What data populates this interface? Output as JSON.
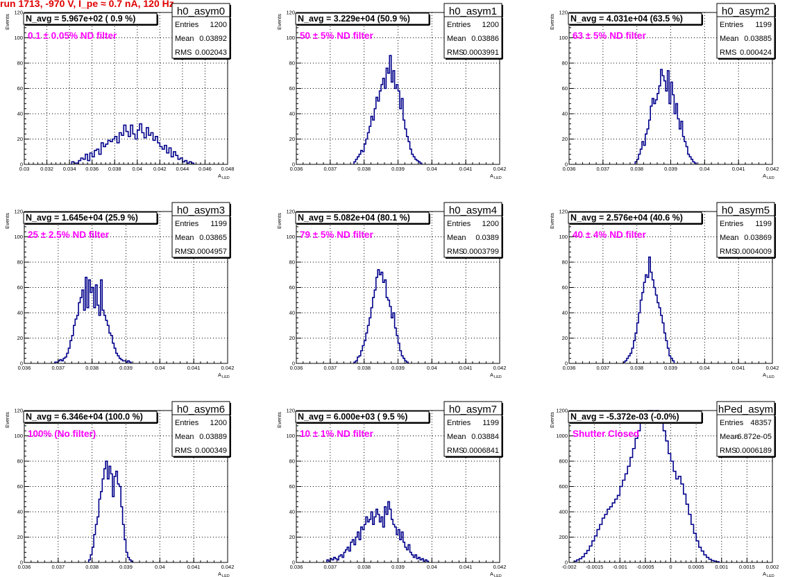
{
  "header": {
    "run_title": "run 1713,  -970 V, I_pe ≈ 0.7 nA, 120 Hz"
  },
  "style": {
    "hist_color": "#00008b",
    "annotation_color": "#ff00ff",
    "title_color": "#e00000",
    "frame_color": "#000000"
  },
  "chart_data": [
    {
      "type": "histogram",
      "name": "h0_asym0",
      "avg_text": "N_avg = 5.967e+02 ( 0.9 %)",
      "annotation": "0.1 ± 0.05% ND filter",
      "stats": [
        [
          "Entries",
          "1200"
        ],
        [
          "Mean",
          "0.03892"
        ],
        [
          "RMS",
          "0.002043"
        ]
      ],
      "xlabel": "A_LED",
      "ylabel": "Events",
      "xlim": [
        0.03,
        0.048
      ],
      "ylim": [
        0,
        120
      ],
      "grid": true,
      "xticks": [
        0.03,
        0.032,
        0.034,
        0.036,
        0.038,
        0.04,
        0.042,
        0.044,
        0.046,
        0.048
      ],
      "xtick_labels": [
        "0.03",
        "0.032",
        "0.034",
        "0.036",
        "0.038",
        "0.04",
        "0.042",
        "0.044",
        "0.046",
        "0.048"
      ],
      "yticks": [
        0,
        20,
        40,
        60,
        80,
        100,
        120
      ],
      "bin_start": 0.0342,
      "bin_width": 0.0002,
      "counts": [
        2,
        1,
        1,
        3,
        5,
        4,
        8,
        3,
        9,
        6,
        11,
        12,
        8,
        17,
        14,
        16,
        19,
        18,
        20,
        22,
        17,
        25,
        23,
        31,
        26,
        22,
        31,
        24,
        20,
        27,
        32,
        25,
        21,
        29,
        23,
        25,
        19,
        22,
        17,
        14,
        12,
        15,
        9,
        13,
        6,
        10,
        7,
        4,
        5,
        2,
        3,
        1,
        2,
        1
      ]
    },
    {
      "type": "histogram",
      "name": "h0_asym1",
      "avg_text": "N_avg = 3.229e+04 (50.9 %)",
      "annotation": "50 ± 5% ND filter",
      "stats": [
        [
          "Entries",
          "1200"
        ],
        [
          "Mean",
          "0.03886"
        ],
        [
          "RMS",
          "0.0003991"
        ]
      ],
      "xlabel": "A_LED",
      "ylabel": "Events",
      "xlim": [
        0.036,
        0.042
      ],
      "ylim": [
        0,
        120
      ],
      "grid": true,
      "xticks": [
        0.036,
        0.037,
        0.038,
        0.039,
        0.04,
        0.041,
        0.042
      ],
      "xtick_labels": [
        "0.036",
        "0.037",
        "0.038",
        "0.039",
        "0.04",
        "0.041",
        "0.042"
      ],
      "yticks": [
        0,
        20,
        40,
        60,
        80,
        100,
        120
      ],
      "bin_start": 0.0377,
      "bin_width": 5e-05,
      "counts": [
        2,
        4,
        6,
        8,
        11,
        10,
        16,
        20,
        25,
        30,
        38,
        35,
        44,
        53,
        50,
        58,
        63,
        68,
        60,
        76,
        72,
        86,
        65,
        74,
        60,
        63,
        58,
        44,
        52,
        35,
        28,
        22,
        18,
        12,
        8,
        6,
        4,
        3,
        2,
        1
      ]
    },
    {
      "type": "histogram",
      "name": "h0_asym2",
      "avg_text": "N_avg = 4.031e+04 (63.5 %)",
      "annotation": "63 ± 5% ND filter",
      "stats": [
        [
          "Entries",
          "1199"
        ],
        [
          "Mean",
          "0.03885"
        ],
        [
          "RMS",
          "0.000424"
        ]
      ],
      "xlabel": "A_LED",
      "ylabel": "Events",
      "xlim": [
        0.036,
        0.042
      ],
      "ylim": [
        0,
        120
      ],
      "grid": true,
      "xticks": [
        0.036,
        0.037,
        0.038,
        0.039,
        0.04,
        0.041,
        0.042
      ],
      "xtick_labels": [
        "0.036",
        "0.037",
        "0.038",
        "0.039",
        "0.04",
        "0.041",
        "0.042"
      ],
      "yticks": [
        0,
        20,
        40,
        60,
        80,
        100,
        120
      ],
      "bin_start": 0.03795,
      "bin_width": 5e-05,
      "counts": [
        2,
        4,
        8,
        12,
        18,
        15,
        24,
        28,
        35,
        46,
        52,
        48,
        51,
        56,
        62,
        75,
        70,
        66,
        58,
        74,
        48,
        65,
        55,
        40,
        48,
        36,
        28,
        34,
        22,
        18,
        14,
        8,
        6,
        4,
        2,
        1
      ]
    },
    {
      "type": "histogram",
      "name": "h0_asym3",
      "avg_text": "N_avg = 1.645e+04 (25.9 %)",
      "annotation": "25 ± 2.5% ND filter",
      "stats": [
        [
          "Entries",
          "1199"
        ],
        [
          "Mean",
          "0.03865"
        ],
        [
          "RMS",
          "0.0004957"
        ]
      ],
      "xlabel": "A_LED",
      "ylabel": "Events",
      "xlim": [
        0.036,
        0.042
      ],
      "ylim": [
        0,
        120
      ],
      "grid": true,
      "xticks": [
        0.036,
        0.037,
        0.038,
        0.039,
        0.04,
        0.041,
        0.042
      ],
      "xtick_labels": [
        "0.036",
        "0.037",
        "0.038",
        "0.039",
        "0.04",
        "0.041",
        "0.042"
      ],
      "yticks": [
        0,
        20,
        40,
        60,
        80,
        100,
        120
      ],
      "bin_start": 0.0369,
      "bin_width": 5e-05,
      "counts": [
        1,
        1,
        2,
        3,
        2,
        4,
        5,
        8,
        12,
        18,
        22,
        30,
        35,
        38,
        48,
        52,
        58,
        42,
        68,
        44,
        66,
        56,
        60,
        44,
        62,
        46,
        38,
        66,
        42,
        38,
        34,
        30,
        24,
        22,
        16,
        12,
        8,
        6,
        4,
        3,
        2,
        2,
        1,
        2,
        1
      ]
    },
    {
      "type": "histogram",
      "name": "h0_asym4",
      "avg_text": "N_avg = 5.082e+04 (80.1 %)",
      "annotation": "79 ± 5% ND filter",
      "stats": [
        [
          "Entries",
          "1200"
        ],
        [
          "Mean",
          "0.0389"
        ],
        [
          "RMS",
          "0.0003799"
        ]
      ],
      "xlabel": "A_LED",
      "ylabel": "Events",
      "xlim": [
        0.036,
        0.042
      ],
      "ylim": [
        0,
        120
      ],
      "grid": true,
      "xticks": [
        0.036,
        0.037,
        0.038,
        0.039,
        0.04,
        0.041,
        0.042
      ],
      "xtick_labels": [
        "0.036",
        "0.037",
        "0.038",
        "0.039",
        "0.04",
        "0.041",
        "0.042"
      ],
      "yticks": [
        0,
        20,
        40,
        60,
        80,
        100,
        120
      ],
      "bin_start": 0.0377,
      "bin_width": 5e-05,
      "counts": [
        1,
        2,
        5,
        6,
        10,
        14,
        18,
        24,
        30,
        36,
        44,
        52,
        58,
        68,
        74,
        70,
        72,
        64,
        66,
        52,
        50,
        45,
        36,
        40,
        28,
        22,
        16,
        10,
        6,
        4,
        2,
        1
      ]
    },
    {
      "type": "histogram",
      "name": "h0_asym5",
      "avg_text": "N_avg = 2.576e+04 (40.6 %)",
      "annotation": "40 ± 4% ND filter",
      "stats": [
        [
          "Entries",
          "1199"
        ],
        [
          "Mean",
          "0.03869"
        ],
        [
          "RMS",
          "0.0004009"
        ]
      ],
      "xlabel": "A_LED",
      "ylabel": "Events",
      "xlim": [
        0.036,
        0.042
      ],
      "ylim": [
        0,
        120
      ],
      "grid": true,
      "xticks": [
        0.036,
        0.037,
        0.038,
        0.039,
        0.04,
        0.041,
        0.042
      ],
      "xtick_labels": [
        "0.036",
        "0.037",
        "0.038",
        "0.039",
        "0.04",
        "0.041",
        "0.042"
      ],
      "yticks": [
        0,
        20,
        40,
        60,
        80,
        100,
        120
      ],
      "bin_start": 0.0376,
      "bin_width": 5e-05,
      "counts": [
        1,
        2,
        4,
        6,
        8,
        12,
        18,
        24,
        32,
        40,
        50,
        56,
        64,
        70,
        68,
        84,
        72,
        66,
        60,
        54,
        48,
        44,
        38,
        32,
        24,
        18,
        12,
        6,
        4,
        2
      ]
    },
    {
      "type": "histogram",
      "name": "h0_asym6",
      "avg_text": "N_avg = 6.346e+04 (100.0 %)",
      "annotation": "100% (No filter)",
      "stats": [
        [
          "Entries",
          "1200"
        ],
        [
          "Mean",
          "0.03889"
        ],
        [
          "RMS",
          "0.000349"
        ]
      ],
      "xlabel": "A_LED",
      "ylabel": "Events",
      "xlim": [
        0.036,
        0.042
      ],
      "ylim": [
        0,
        120
      ],
      "grid": true,
      "xticks": [
        0.036,
        0.037,
        0.038,
        0.039,
        0.04,
        0.041,
        0.042
      ],
      "xtick_labels": [
        "0.036",
        "0.037",
        "0.038",
        "0.039",
        "0.04",
        "0.041",
        "0.042"
      ],
      "yticks": [
        0,
        20,
        40,
        60,
        80,
        100,
        120
      ],
      "bin_start": 0.0379,
      "bin_width": 5e-05,
      "counts": [
        2,
        6,
        12,
        22,
        30,
        36,
        50,
        56,
        66,
        74,
        80,
        66,
        76,
        70,
        52,
        68,
        72,
        62,
        60,
        44,
        30,
        18,
        8,
        4,
        2,
        1
      ]
    },
    {
      "type": "histogram",
      "name": "h0_asym7",
      "avg_text": "N_avg = 6.000e+03 ( 9.5 %)",
      "annotation": "10 ± 1% ND filter",
      "stats": [
        [
          "Entries",
          "1199"
        ],
        [
          "Mean",
          "0.03884"
        ],
        [
          "RMS",
          "0.0006841"
        ]
      ],
      "xlabel": "A_LED",
      "ylabel": "Events",
      "xlim": [
        0.036,
        0.042
      ],
      "ylim": [
        0,
        120
      ],
      "grid": true,
      "xticks": [
        0.036,
        0.037,
        0.038,
        0.039,
        0.04,
        0.041,
        0.042
      ],
      "xtick_labels": [
        "0.036",
        "0.037",
        "0.038",
        "0.039",
        "0.04",
        "0.041",
        "0.042"
      ],
      "yticks": [
        0,
        20,
        40,
        60,
        80,
        100,
        120
      ],
      "bin_start": 0.0369,
      "bin_width": 5e-05,
      "counts": [
        2,
        1,
        3,
        2,
        4,
        3,
        2,
        5,
        6,
        4,
        8,
        10,
        12,
        9,
        16,
        18,
        14,
        20,
        24,
        18,
        28,
        26,
        30,
        36,
        32,
        34,
        40,
        30,
        36,
        42,
        38,
        32,
        36,
        28,
        44,
        38,
        48,
        42,
        34,
        30,
        28,
        22,
        26,
        18,
        24,
        16,
        12,
        10,
        14,
        8,
        6,
        4,
        6,
        3,
        4,
        2,
        3,
        1,
        2,
        1
      ]
    },
    {
      "type": "histogram",
      "name": "hPed_asym",
      "avg_text": "N_avg = -5.372e-03 (-0.0%)",
      "annotation": "Shutter Closed",
      "stats": [
        [
          "Entries",
          "48357"
        ],
        [
          "Mean",
          "-6.872e-05"
        ],
        [
          "RMS",
          "0.0006189"
        ]
      ],
      "xlabel": "A_LED",
      "ylabel": "Events",
      "xlim": [
        -0.002,
        0.002
      ],
      "ylim": [
        0,
        1200
      ],
      "grid": true,
      "xticks": [
        -0.002,
        -0.0015,
        -0.001,
        -0.0005,
        0,
        0.0005,
        0.001,
        0.0015,
        0.002
      ],
      "xtick_labels": [
        "-0.002",
        "-0.0015",
        "-0.001",
        "-0.0005",
        "0",
        "0.0005",
        "0.001",
        "0.0015",
        "0.002"
      ],
      "yticks": [
        0,
        200,
        400,
        600,
        800,
        1000,
        1200
      ],
      "bin_start": -0.0019,
      "bin_width": 5e-05,
      "counts": [
        10,
        20,
        30,
        45,
        70,
        95,
        130,
        170,
        210,
        260,
        300,
        350,
        380,
        420,
        440,
        470,
        500,
        530,
        600,
        650,
        700,
        760,
        830,
        900,
        980,
        1040,
        1110,
        1170,
        1190,
        1200,
        1200,
        1180,
        1200,
        1150,
        1100,
        1040,
        960,
        860,
        800,
        720,
        660,
        680,
        620,
        540,
        460,
        380,
        300,
        230,
        170,
        120,
        90,
        60,
        40,
        25,
        15,
        10,
        5
      ]
    }
  ]
}
